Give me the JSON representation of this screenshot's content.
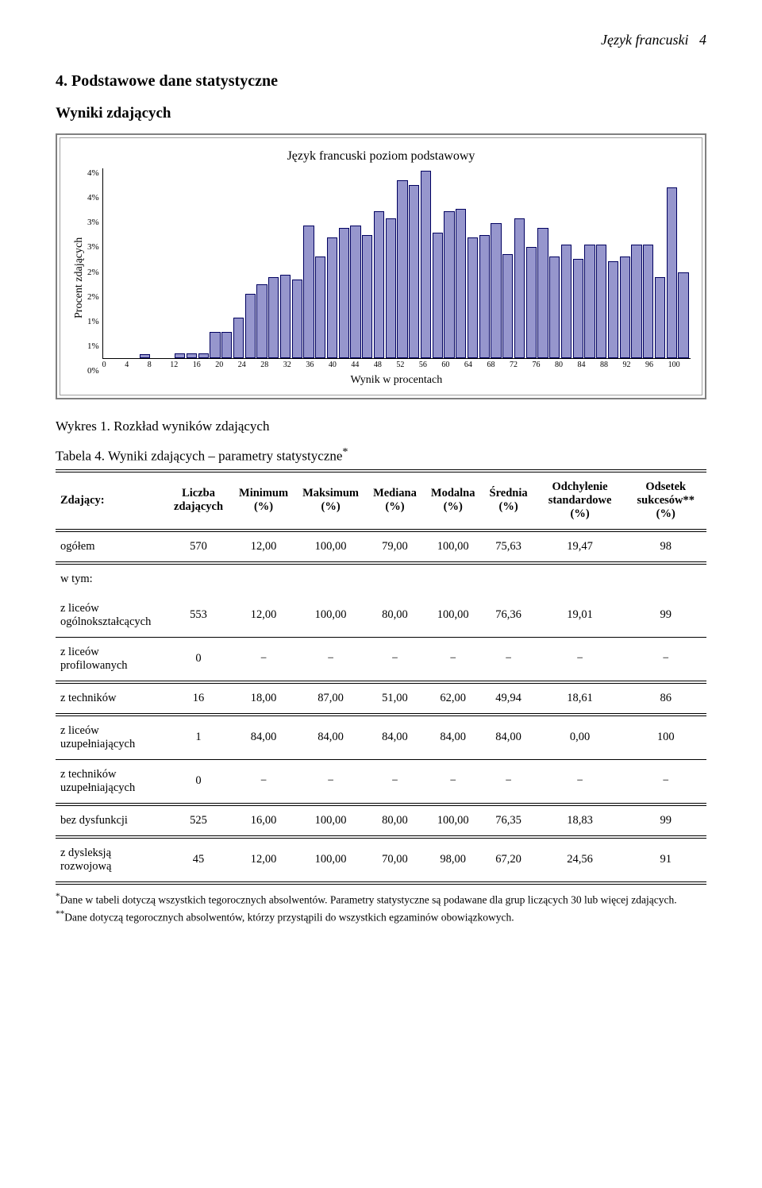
{
  "header": {
    "title": "Język francuski",
    "page_number": "4"
  },
  "section": {
    "number": "4.",
    "title": "Podstawowe dane statystyczne",
    "subtitle": "Wyniki zdających"
  },
  "chart": {
    "type": "bar",
    "title": "Język francuski poziom podstawowy",
    "ylabel": "Procent zdających",
    "xlabel": "Wynik w procentach",
    "ylim_max": 4,
    "ytick_labels": [
      "4%",
      "4%",
      "3%",
      "3%",
      "2%",
      "2%",
      "1%",
      "1%",
      "0%"
    ],
    "xtick_labels": [
      "0",
      "4",
      "8",
      "12",
      "16",
      "20",
      "24",
      "28",
      "32",
      "36",
      "40",
      "44",
      "48",
      "52",
      "56",
      "60",
      "64",
      "68",
      "72",
      "76",
      "80",
      "84",
      "88",
      "92",
      "96",
      "100"
    ],
    "bar_color": "#9696cd",
    "bar_border_color": "#000060",
    "outer_border_color": "#808080",
    "background_color": "#ffffff",
    "values": [
      0,
      0,
      0,
      0.08,
      0,
      0,
      0.1,
      0.1,
      0.1,
      0.55,
      0.55,
      0.85,
      1.35,
      1.55,
      1.7,
      1.75,
      1.65,
      2.8,
      2.15,
      2.55,
      2.75,
      2.8,
      2.6,
      3.1,
      2.95,
      3.75,
      3.65,
      3.95,
      2.65,
      3.1,
      3.15,
      2.55,
      2.6,
      2.85,
      2.2,
      2.95,
      2.35,
      2.75,
      2.15,
      2.4,
      2.1,
      2.4,
      2.4,
      2.05,
      2.15,
      2.4,
      2.4,
      1.7,
      3.6,
      1.8
    ]
  },
  "captions": {
    "fig": "Wykres 1. Rozkład wyników zdających",
    "table": "Tabela 4. Wyniki zdających – parametry statystyczne",
    "table_sup": "*"
  },
  "table": {
    "headers": [
      "Zdający:",
      "Liczba zdających",
      "Minimum (%)",
      "Maksimum (%)",
      "Mediana (%)",
      "Modalna (%)",
      "Średnia (%)",
      "Odchylenie standardowe (%)",
      "Odsetek sukcesów** (%)"
    ],
    "rows": [
      {
        "style": "dbl",
        "cells": [
          "ogółem",
          "570",
          "12,00",
          "100,00",
          "79,00",
          "100,00",
          "75,63",
          "19,47",
          "98"
        ]
      },
      {
        "style": "section",
        "label": "w tym:"
      },
      {
        "style": "none",
        "cells": [
          "z liceów ogólnokształcących",
          "553",
          "12,00",
          "100,00",
          "80,00",
          "100,00",
          "76,36",
          "19,01",
          "99"
        ]
      },
      {
        "style": "sgl",
        "cells": [
          "z liceów profilowanych",
          "0",
          "−",
          "−",
          "−",
          "−",
          "−",
          "−",
          "−"
        ]
      },
      {
        "style": "dbl",
        "cells": [
          "z techników",
          "16",
          "18,00",
          "87,00",
          "51,00",
          "62,00",
          "49,94",
          "18,61",
          "86"
        ]
      },
      {
        "style": "dbl",
        "cells": [
          "z liceów uzupełniających",
          "1",
          "84,00",
          "84,00",
          "84,00",
          "84,00",
          "84,00",
          "0,00",
          "100"
        ]
      },
      {
        "style": "sgl",
        "cells": [
          "z techników uzupełniających",
          "0",
          "−",
          "−",
          "−",
          "−",
          "−",
          "−",
          "−"
        ]
      },
      {
        "style": "dbl",
        "cells": [
          "bez dysfunkcji",
          "525",
          "16,00",
          "100,00",
          "80,00",
          "100,00",
          "76,35",
          "18,83",
          "99"
        ]
      },
      {
        "style": "dbl",
        "cells": [
          "z dysleksją rozwojową",
          "45",
          "12,00",
          "100,00",
          "70,00",
          "98,00",
          "67,20",
          "24,56",
          "91"
        ]
      }
    ]
  },
  "footnotes": {
    "note1_sup": "*",
    "note1": "Dane w tabeli dotyczą wszystkich tegorocznych absolwentów. Parametry statystyczne są podawane dla grup liczących 30 lub więcej zdających.",
    "note2_sup": "**",
    "note2": "Dane dotyczą tegorocznych absolwentów, którzy przystąpili do wszystkich egzaminów obowiązkowych."
  }
}
